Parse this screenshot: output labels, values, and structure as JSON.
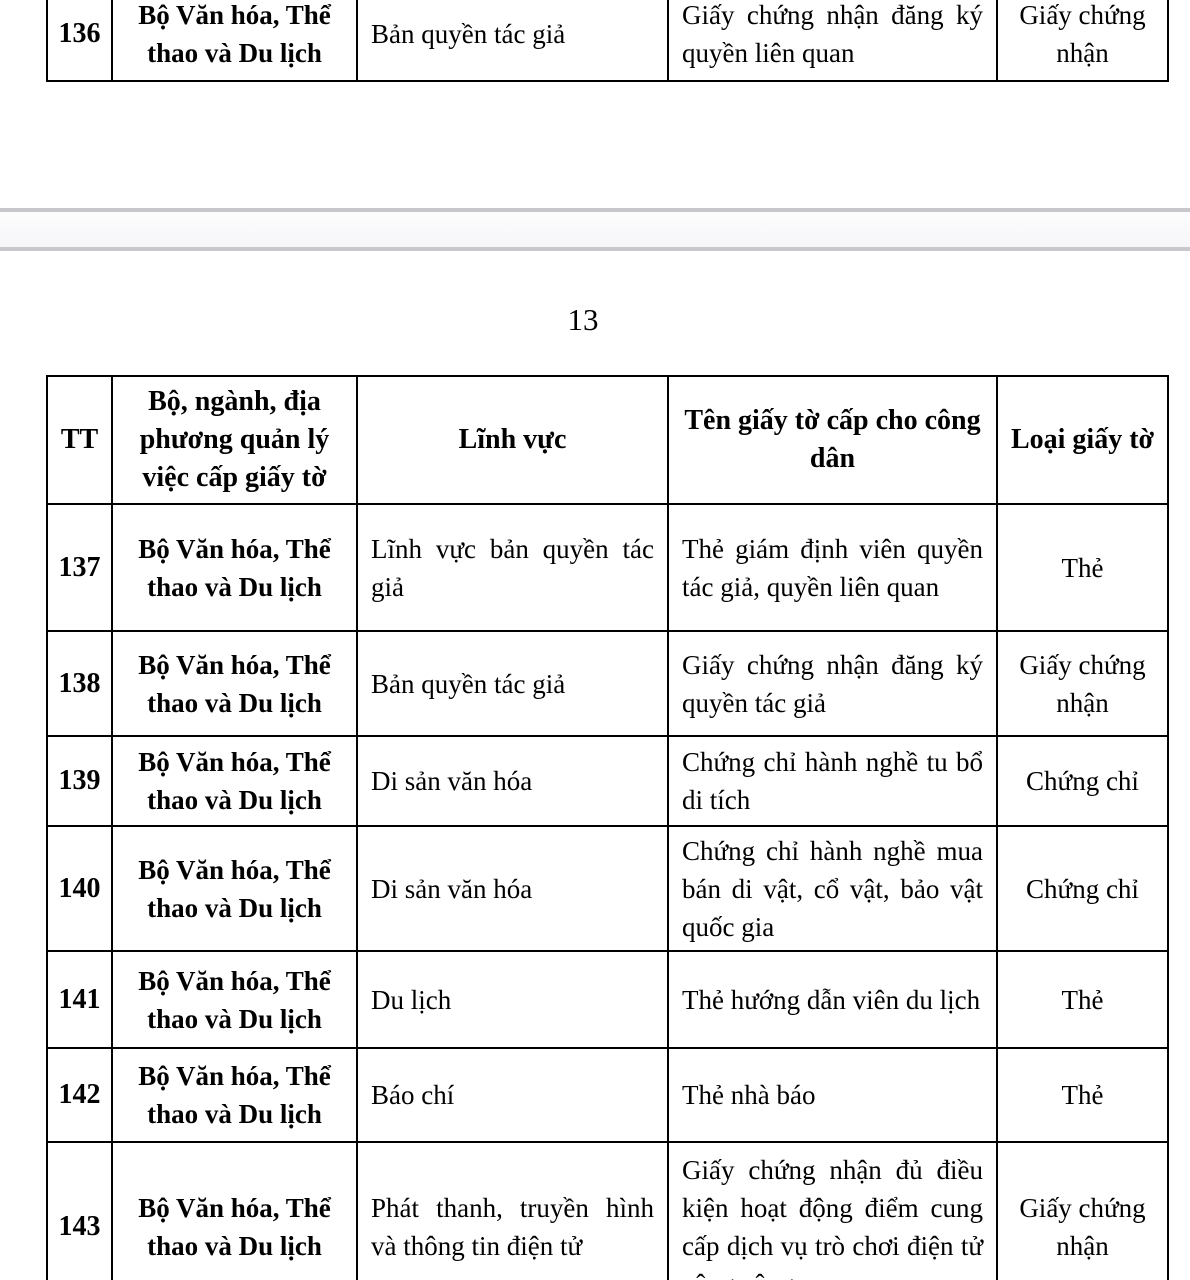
{
  "colors": {
    "table_border": "#000000",
    "text": "#000000",
    "gap_border": "#c8c8cc",
    "gap_fill": "#f6f6f9",
    "gap_fill_light": "#fdfdfe"
  },
  "page_number": "13",
  "prev_row": {
    "tt": "136",
    "agency": "Bộ Văn hóa, Thể thao và Du lịch",
    "field": "Bản quyền tác giả",
    "doc_name": "Giấy chứng nhận đăng ký quyền liên quan",
    "doc_type": "Giấy chứng nhận"
  },
  "table": {
    "headers": {
      "tt": "TT",
      "agency": "Bộ, ngành, địa phương quản lý việc cấp giấy tờ",
      "field": "Lĩnh vực",
      "doc_name": "Tên giấy tờ cấp cho công dân",
      "doc_type": "Loại giấy tờ"
    },
    "rows": [
      {
        "tt": "137",
        "agency": "Bộ Văn hóa, Thể thao và Du lịch",
        "field": "Lĩnh vực bản quyền tác giả",
        "doc_name": "Thẻ giám định viên quyền tác giả, quyền liên quan",
        "doc_type": "Thẻ"
      },
      {
        "tt": "138",
        "agency": "Bộ Văn hóa, Thể thao và Du lịch",
        "field": "Bản quyền tác giả",
        "doc_name": "Giấy chứng nhận đăng ký quyền tác giả",
        "doc_type": "Giấy chứng nhận"
      },
      {
        "tt": "139",
        "agency": "Bộ Văn hóa, Thể thao và Du lịch",
        "field": "Di sản văn hóa",
        "doc_name": "Chứng chỉ hành nghề tu bổ di tích",
        "doc_type": "Chứng chỉ"
      },
      {
        "tt": "140",
        "agency": "Bộ Văn hóa, Thể thao và Du lịch",
        "field": "Di sản văn hóa",
        "doc_name": "Chứng chỉ hành nghề mua bán di vật, cổ vật, bảo vật quốc gia",
        "doc_type": "Chứng chỉ"
      },
      {
        "tt": "141",
        "agency": "Bộ Văn hóa, Thể thao và Du lịch",
        "field": "Du lịch",
        "doc_name": "Thẻ hướng dẫn viên du lịch",
        "doc_type": "Thẻ"
      },
      {
        "tt": "142",
        "agency": "Bộ Văn hóa, Thể thao và Du lịch",
        "field": "Báo chí",
        "doc_name": "Thẻ nhà báo",
        "doc_type": "Thẻ"
      },
      {
        "tt": "143",
        "agency": "Bộ Văn hóa, Thể thao và Du lịch",
        "field": "Phát thanh, truyền hình và thông tin điện tử",
        "doc_name": "Giấy chứng nhận đủ điều kiện hoạt động điểm cung cấp dịch vụ trò chơi điện tử công cộng",
        "doc_type": "Giấy chứng nhận"
      }
    ]
  }
}
